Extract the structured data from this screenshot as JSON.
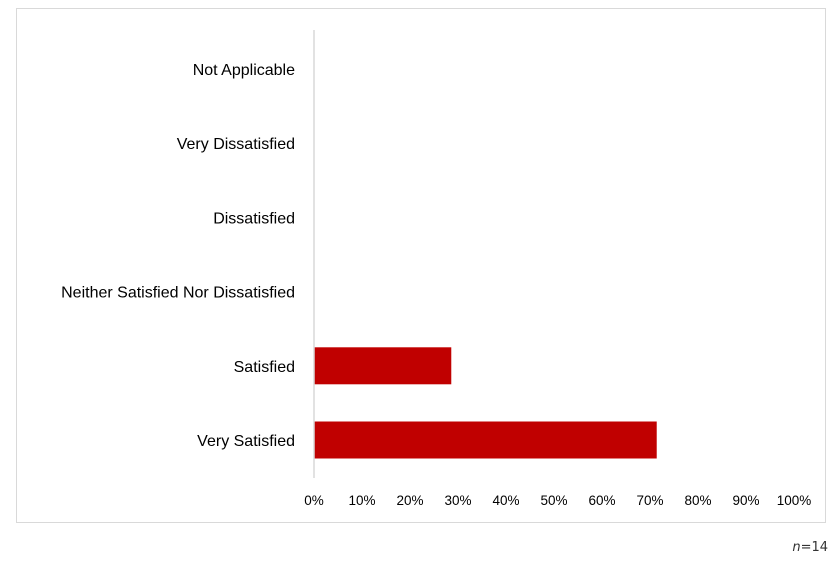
{
  "chart_data": {
    "type": "bar",
    "orientation": "horizontal",
    "categories": [
      "Not Applicable",
      "Very Dissatisfied",
      "Dissatisfied",
      "Neither Satisfied Nor Dissatisfied",
      "Satisfied",
      "Very Satisfied"
    ],
    "values": [
      0,
      0,
      0,
      0,
      28.6,
      71.4
    ],
    "x_ticks": [
      "0%",
      "10%",
      "20%",
      "30%",
      "40%",
      "50%",
      "60%",
      "70%",
      "80%",
      "90%",
      "100%"
    ],
    "xlim": [
      0,
      100
    ],
    "grid": false,
    "legend": "none",
    "bar_color": "#c00000",
    "axis_color": "#d9d9d9"
  },
  "note": {
    "variable": "n",
    "value": "=14"
  }
}
